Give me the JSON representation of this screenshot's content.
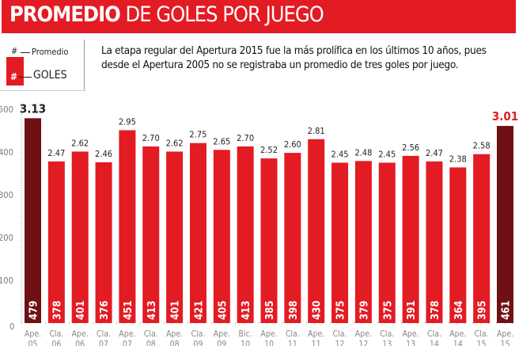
{
  "header": {
    "title_bold": "PROMEDIO",
    "title_rest": "DE GOLES POR JUEGO"
  },
  "legend": {
    "hash_top": "#",
    "promedio": "Promedio",
    "hash_bar": "#",
    "goles": "GOLES"
  },
  "description": "La etapa regular del Apertura 2015 fue la más prolífica en los últimos 10 años, pues desde el Apertura 2005 no se registraba un promedio de tres goles por juego.",
  "colors": {
    "bar": "#e31b23",
    "highlight": "#6e1014",
    "highlight_label": "#e31b23"
  },
  "chart_data": {
    "type": "bar",
    "ylim": [
      0,
      500
    ],
    "yticks": [
      0,
      100,
      200,
      300,
      400,
      500
    ],
    "grid": false,
    "categories": [
      [
        "Ape.",
        "05"
      ],
      [
        "Cla.",
        "06"
      ],
      [
        "Ape.",
        "06"
      ],
      [
        "Cla.",
        "07"
      ],
      [
        "Ape.",
        "07"
      ],
      [
        "Cla.",
        "08"
      ],
      [
        "Ape.",
        "08"
      ],
      [
        "Cla.",
        "09"
      ],
      [
        "Ape.",
        "09"
      ],
      [
        "Bic.",
        "10"
      ],
      [
        "Ape.",
        "10"
      ],
      [
        "Cla.",
        "11"
      ],
      [
        "Ape.",
        "11"
      ],
      [
        "Cla.",
        "12"
      ],
      [
        "Ape.",
        "12"
      ],
      [
        "Cla.",
        "13"
      ],
      [
        "Ape.",
        "13"
      ],
      [
        "Cla.",
        "14"
      ],
      [
        "Ape.",
        "14"
      ],
      [
        "Cla.",
        "15"
      ],
      [
        "Ape.",
        "15"
      ]
    ],
    "values": [
      479,
      378,
      401,
      376,
      451,
      413,
      401,
      421,
      405,
      413,
      385,
      398,
      430,
      375,
      379,
      375,
      391,
      378,
      364,
      395,
      461
    ],
    "averages": [
      "3.13",
      "2.47",
      "2.62",
      "2.46",
      "2.95",
      "2.70",
      "2.62",
      "2.75",
      "2.65",
      "2.70",
      "2.52",
      "2.60",
      "2.81",
      "2.45",
      "2.48",
      "2.45",
      "2.56",
      "2.47",
      "2.38",
      "2.58",
      "3.01"
    ],
    "highlighted": [
      0,
      20
    ]
  }
}
